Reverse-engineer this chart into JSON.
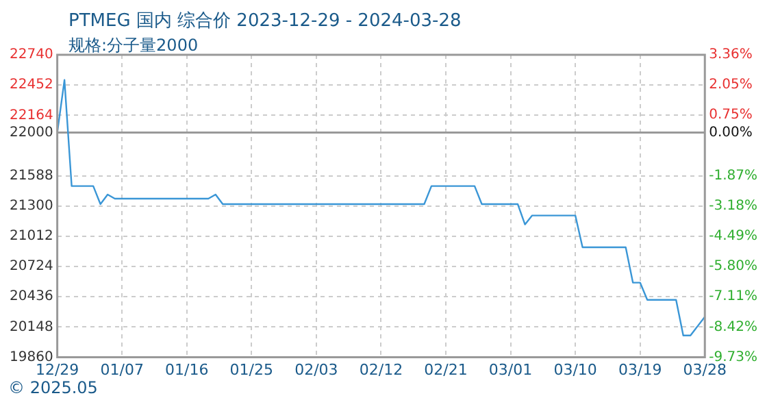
{
  "chart_data": {
    "type": "line",
    "title": "PTMEG 国内 综合价 2023-12-29 - 2024-03-28",
    "subtitle": "规格:分子量2000",
    "annotations": [
      "© 2025.05"
    ],
    "x": [
      "2023-12-29",
      "2023-12-30",
      "2023-12-31",
      "2024-01-03",
      "2024-01-04",
      "2024-01-05",
      "2024-01-06",
      "2024-01-19",
      "2024-01-20",
      "2024-01-21",
      "2024-02-18",
      "2024-02-19",
      "2024-02-25",
      "2024-02-26",
      "2024-03-02",
      "2024-03-03",
      "2024-03-04",
      "2024-03-10",
      "2024-03-11",
      "2024-03-17",
      "2024-03-18",
      "2024-03-19",
      "2024-03-20",
      "2024-03-24",
      "2024-03-25",
      "2024-03-26",
      "2024-03-28"
    ],
    "series": [
      {
        "color": "#3a96d6",
        "values": [
          22000,
          22500,
          21490,
          21490,
          21318,
          21410,
          21370,
          21370,
          21410,
          21318,
          21318,
          21490,
          21490,
          21318,
          21318,
          21125,
          21210,
          21210,
          20907,
          20907,
          20571,
          20571,
          20407,
          20407,
          20068,
          20068,
          20246
        ]
      }
    ],
    "xlim": [
      "2023-12-29",
      "2024-03-28"
    ],
    "xticks": [
      {
        "value": "2023-12-29",
        "label": "12/29"
      },
      {
        "value": "2024-01-07",
        "label": "01/07"
      },
      {
        "value": "2024-01-16",
        "label": "01/16"
      },
      {
        "value": "2024-01-25",
        "label": "01/25"
      },
      {
        "value": "2024-02-03",
        "label": "02/03"
      },
      {
        "value": "2024-02-12",
        "label": "02/12"
      },
      {
        "value": "2024-02-21",
        "label": "02/21"
      },
      {
        "value": "2024-03-01",
        "label": "03/01"
      },
      {
        "value": "2024-03-10",
        "label": "03/10"
      },
      {
        "value": "2024-03-19",
        "label": "03/19"
      },
      {
        "value": "2024-03-28",
        "label": "03/28"
      }
    ],
    "ylim": [
      19860,
      22740
    ],
    "yticks": [
      19860,
      20148,
      20436,
      20724,
      21012,
      21300,
      21588,
      22000,
      22164,
      22452,
      22740
    ],
    "y2lim": [
      -9.73,
      3.36
    ],
    "y2ticks": [
      {
        "value": -9.73,
        "label": "-9.73%"
      },
      {
        "value": -8.42,
        "label": "-8.42%"
      },
      {
        "value": -7.11,
        "label": "-7.11%"
      },
      {
        "value": -5.8,
        "label": "-5.80%"
      },
      {
        "value": -4.49,
        "label": "-4.49%"
      },
      {
        "value": -3.18,
        "label": "-3.18%"
      },
      {
        "value": -1.87,
        "label": "-1.87%"
      },
      {
        "value": 0,
        "label": "0.00%"
      },
      {
        "value": 0.75,
        "label": "0.75%"
      },
      {
        "value": 2.05,
        "label": "2.05%"
      },
      {
        "value": 3.36,
        "label": "3.36%"
      }
    ],
    "ref_lines": [
      {
        "axis": "y",
        "value": 22000,
        "color": "#999999"
      }
    ],
    "grid": true,
    "legend": false,
    "marker": "none",
    "line_style": "solid"
  }
}
